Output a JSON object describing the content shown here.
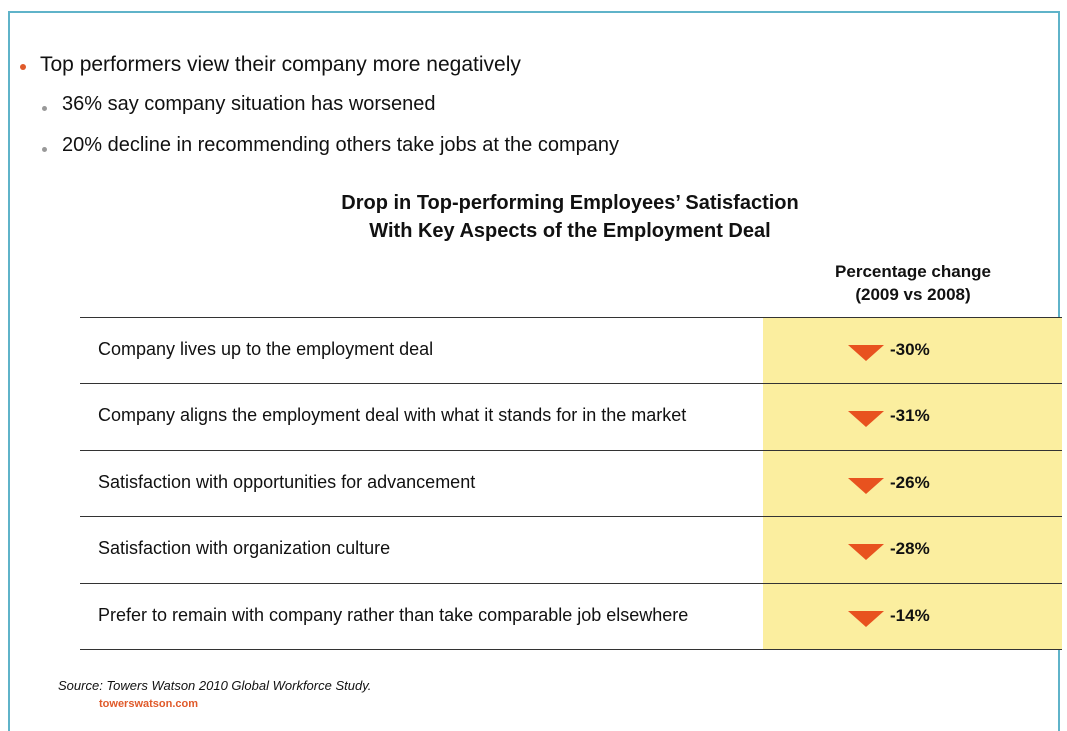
{
  "bullets": {
    "main": "Top performers view their company more negatively",
    "sub": [
      "36% say company situation has worsened",
      "20% decline in recommending others take jobs at the company"
    ]
  },
  "table": {
    "title": [
      "Drop in Top-performing Employees’ Satisfaction",
      "With Key Aspects of the Employment Deal"
    ],
    "header": [
      "Percentage change",
      "(2009 vs 2008)"
    ],
    "rows": [
      [
        "Company lives up to the employment deal",
        "-30%"
      ],
      [
        "Company aligns the employment deal with what it stands for in the market",
        "-31%"
      ],
      [
        "Satisfaction with opportunities for advancement",
        "-26%"
      ],
      [
        "Satisfaction with organization culture",
        "-28%"
      ],
      [
        "Prefer to remain with company rather than take comparable job elsewhere",
        "-14%"
      ]
    ]
  },
  "footer": {
    "source": "Source: Towers Watson 2010 Global Workforce Study.",
    "brand": "towerswatson.com"
  }
}
